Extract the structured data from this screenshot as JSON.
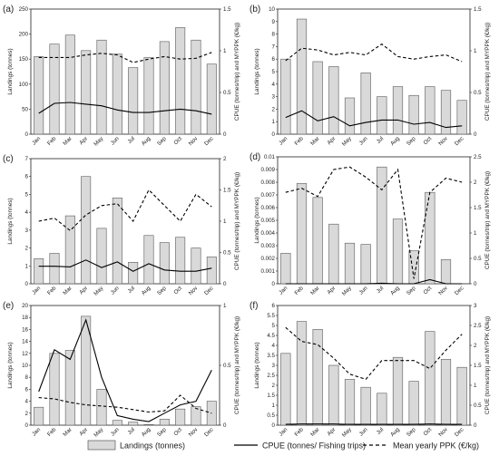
{
  "months": [
    "Jan",
    "Feb",
    "Mar",
    "Apr",
    "May",
    "Jun",
    "Jul",
    "Aug",
    "Sep",
    "Oct",
    "Nov",
    "Dec"
  ],
  "colors": {
    "bar_fill": "#d9d9d9",
    "bar_stroke": "#595959",
    "line": "#000000",
    "frame": "#222222"
  },
  "legend": {
    "landings": "Landings (tonnes)",
    "cpue": "CPUE (tonnes/ Fishing trips)",
    "ppk": "Mean yearly PPK (€/kg)"
  },
  "chart_data": [
    {
      "panel": "(a)",
      "type": "bar+line",
      "ylabel_left": "Landings (tonnes)",
      "ylabel_right": "CPUE (tonnes/trip) and MYPPK (€/kg)",
      "ylim_left": [
        0,
        250
      ],
      "yticks_left": [
        "0",
        "50",
        "100",
        "150",
        "200",
        "250"
      ],
      "ylim_right": [
        0,
        1.5
      ],
      "yticks_right": [
        "0",
        "0.5",
        "1",
        "1.5"
      ],
      "landings": [
        155,
        180,
        198,
        167,
        188,
        160,
        133,
        153,
        185,
        213,
        188,
        140
      ],
      "cpue": [
        0.25,
        0.37,
        0.38,
        0.36,
        0.34,
        0.29,
        0.26,
        0.26,
        0.28,
        0.3,
        0.28,
        0.24
      ],
      "ppk": [
        0.92,
        0.92,
        0.92,
        0.95,
        0.97,
        0.95,
        0.86,
        0.9,
        0.93,
        0.9,
        0.91,
        0.98
      ]
    },
    {
      "panel": "(b)",
      "type": "bar+line",
      "ylabel_left": "Landings (tonnes)",
      "ylabel_right": "CPUE (tonnes/trip) and MYPPK (€/kg)",
      "ylim_left": [
        0,
        10
      ],
      "yticks_left": [
        "0",
        "1",
        "2",
        "3",
        "4",
        "5",
        "6",
        "7",
        "8",
        "9",
        "10"
      ],
      "ylim_right": [
        0,
        1.5
      ],
      "yticks_right": [
        "0",
        "0.5",
        "1",
        "1.5"
      ],
      "landings": [
        6.0,
        9.2,
        5.8,
        5.4,
        2.9,
        4.9,
        3.0,
        3.8,
        3.1,
        3.8,
        3.5,
        2.7
      ],
      "cpue": [
        0.2,
        0.28,
        0.16,
        0.21,
        0.1,
        0.14,
        0.17,
        0.17,
        0.12,
        0.14,
        0.08,
        0.1
      ],
      "ppk": [
        0.88,
        1.03,
        1.01,
        0.95,
        0.98,
        0.95,
        1.08,
        0.93,
        0.9,
        0.93,
        0.95,
        0.87
      ]
    },
    {
      "panel": "(c)",
      "type": "bar+line",
      "ylabel_left": "Landings (tonnes)",
      "ylabel_right": "CPUE (tonnes/trip) and MYPPK (€/kg)",
      "ylim_left": [
        0,
        7
      ],
      "yticks_left": [
        "0",
        "1",
        "2",
        "3",
        "4",
        "5",
        "6",
        "7"
      ],
      "ylim_right": [
        0,
        2
      ],
      "yticks_right": [
        "0",
        "0.5",
        "1",
        "1.5",
        "2"
      ],
      "landings": [
        1.4,
        1.7,
        3.8,
        6.0,
        3.1,
        4.8,
        1.2,
        2.7,
        2.3,
        2.6,
        2.0,
        1.5
      ],
      "cpue": [
        0.28,
        0.28,
        0.27,
        0.38,
        0.26,
        0.35,
        0.2,
        0.32,
        0.22,
        0.2,
        0.2,
        0.25
      ],
      "ppk": [
        1.0,
        1.05,
        0.85,
        1.1,
        1.25,
        1.28,
        1.0,
        1.5,
        1.25,
        1.0,
        1.43,
        1.23
      ]
    },
    {
      "panel": "(d)",
      "type": "bar+line",
      "ylabel_left": "Landings (tonnes)",
      "ylabel_right": "CPUE (tonnes/trip) and MYPPK (€/kg)",
      "ylim_left": [
        0,
        0.01
      ],
      "yticks_left": [
        "0",
        "0.001",
        "0.002",
        "0.003",
        "0.004",
        "0.005",
        "0.006",
        "0.007",
        "0.008",
        "0.009",
        "0.01"
      ],
      "ylim_right": [
        0,
        2.5
      ],
      "yticks_right": [
        "0",
        "0.5",
        "1",
        "1.5",
        "2",
        "2.5"
      ],
      "landings": [
        0.0024,
        0.0079,
        0.0068,
        0.0047,
        0.0032,
        0.0031,
        0.0092,
        0.0051,
        0.0026,
        0.0072,
        0.0019,
        0
      ],
      "cpue": [
        0.0,
        0.0,
        0.0,
        0.0,
        0.0,
        0.0,
        0.01,
        0.0,
        0.0,
        0.08,
        0.0,
        0.0
      ],
      "ppk": [
        1.8,
        1.88,
        1.72,
        2.25,
        2.3,
        2.1,
        1.85,
        2.25,
        0.1,
        1.8,
        2.08,
        2.0
      ]
    },
    {
      "panel": "(e)",
      "type": "bar+line",
      "ylabel_left": "Landings (tonnes)",
      "ylabel_right": "CPUE (tonnes/trip) and MYPPK (€/kg)",
      "ylim_left": [
        0,
        20
      ],
      "yticks_left": [
        "0",
        "2",
        "4",
        "6",
        "8",
        "10",
        "12",
        "14",
        "16",
        "18",
        "20"
      ],
      "ylim_right": [
        0,
        1
      ],
      "yticks_right": [
        "0",
        "0.5",
        "1"
      ],
      "landings": [
        3.0,
        12.0,
        12.5,
        18.2,
        6.0,
        0.8,
        0.5,
        0.1,
        1.0,
        2.7,
        3.1,
        4.0
      ],
      "cpue": [
        0.28,
        0.63,
        0.55,
        0.88,
        0.4,
        0.08,
        0.05,
        0.03,
        0.1,
        0.17,
        0.2,
        0.46
      ],
      "ppk": [
        0.23,
        0.22,
        0.19,
        0.17,
        0.16,
        0.15,
        0.13,
        0.11,
        0.12,
        0.25,
        0.14,
        0.1
      ]
    },
    {
      "panel": "(f)",
      "type": "bar+line",
      "ylabel_left": "Landings (tonnes)",
      "ylabel_right": "CPUE (tonnes/trip) and MYPPK (€/kg)",
      "ylim_left": [
        0,
        6
      ],
      "yticks_left": [
        "0",
        "0.5",
        "1",
        "1.5",
        "2",
        "2.5",
        "3",
        "3.5",
        "4",
        "4.5",
        "5",
        "5.5",
        "6"
      ],
      "ylim_right": [
        0,
        3
      ],
      "yticks_right": [
        "0",
        "0.5",
        "1",
        "1.5",
        "2",
        "2.5",
        "3"
      ],
      "landings": [
        3.6,
        5.2,
        4.8,
        3.0,
        2.3,
        1.9,
        1.6,
        3.4,
        2.2,
        4.7,
        3.3,
        2.9
      ],
      "cpue": [
        0.02,
        0.03,
        0.03,
        0.03,
        0.02,
        0.02,
        0.02,
        0.02,
        0.02,
        0.03,
        0.02,
        0.02
      ],
      "ppk": [
        2.45,
        2.1,
        2.02,
        1.68,
        1.28,
        1.15,
        1.62,
        1.62,
        1.62,
        1.42,
        1.88,
        2.28
      ]
    }
  ]
}
